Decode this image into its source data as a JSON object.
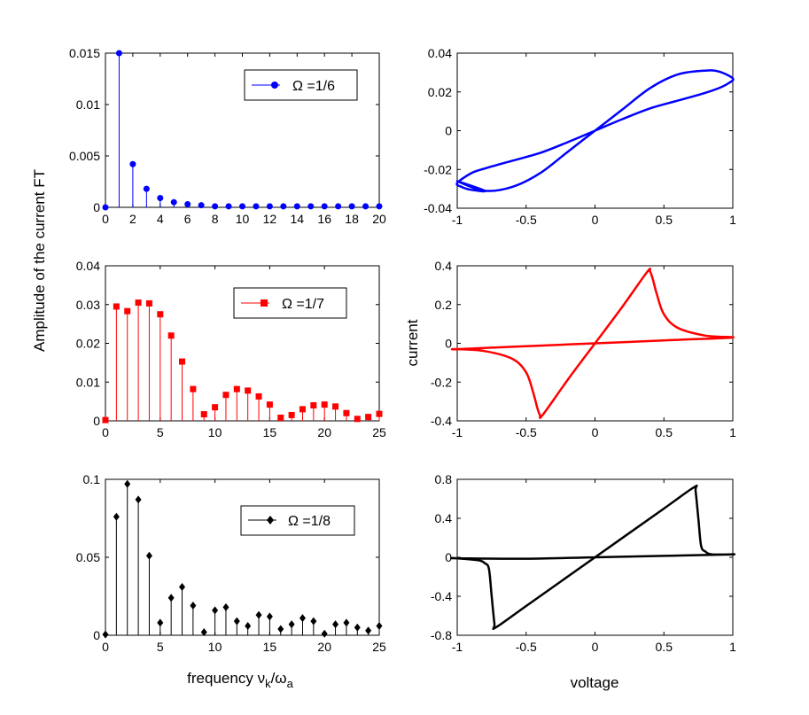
{
  "figure": {
    "ylabel": "Amplitude of the current FT",
    "xlabel_prefix": "frequency ",
    "xlabel_nu": "ν",
    "xlabel_nu_sub": "k",
    "xlabel_slash": "/",
    "xlabel_omega": "ω",
    "xlabel_omega_sub": "a",
    "right_ylabel": "current",
    "right_xlabel": "voltage"
  },
  "chart_data": [
    {
      "type": "stem",
      "legend": "Ω =1/6",
      "color": "#0000ff",
      "marker": "circle",
      "xlim": [
        0,
        20
      ],
      "ylim": [
        0,
        0.015
      ],
      "xticks": [
        0,
        2,
        4,
        6,
        8,
        10,
        12,
        14,
        16,
        18,
        20
      ],
      "yticks": [
        0,
        0.005,
        0.01,
        0.015
      ],
      "ytick_labels": [
        "0",
        "0.005",
        "0.01",
        "0.015"
      ],
      "x": [
        0,
        1,
        2,
        3,
        4,
        5,
        6,
        7,
        8,
        9,
        10,
        11,
        12,
        13,
        14,
        15,
        16,
        17,
        18,
        19,
        20
      ],
      "values": [
        0,
        0.015,
        0.0042,
        0.0018,
        0.0009,
        0.0005,
        0.0003,
        0.0002,
        0.0001,
        0.0001,
        0.0001,
        0.0001,
        0.0001,
        0.0001,
        0.0001,
        0.0001,
        0.0001,
        0.0001,
        0.0001,
        0.0001,
        0.0001
      ]
    },
    {
      "type": "stem",
      "legend": "Ω =1/7",
      "color": "#ff0000",
      "marker": "square",
      "xlim": [
        0,
        25
      ],
      "ylim": [
        0,
        0.04
      ],
      "xticks": [
        0,
        5,
        10,
        15,
        20,
        25
      ],
      "yticks": [
        0,
        0.01,
        0.02,
        0.03,
        0.04
      ],
      "ytick_labels": [
        "0",
        "0.01",
        "0.02",
        "0.03",
        "0.04"
      ],
      "x": [
        0,
        1,
        2,
        3,
        4,
        5,
        6,
        7,
        8,
        9,
        10,
        11,
        12,
        13,
        14,
        15,
        16,
        17,
        18,
        19,
        20,
        21,
        22,
        23,
        24,
        25
      ],
      "values": [
        0.0002,
        0.0295,
        0.0283,
        0.0305,
        0.0303,
        0.0275,
        0.022,
        0.0153,
        0.0082,
        0.0017,
        0.0035,
        0.0067,
        0.0082,
        0.0078,
        0.0063,
        0.0042,
        0.0008,
        0.0015,
        0.003,
        0.004,
        0.0042,
        0.0037,
        0.002,
        0.0005,
        0.001,
        0.0018
      ]
    },
    {
      "type": "stem",
      "legend": "Ω =1/8",
      "color": "#000000",
      "marker": "diamond",
      "xlim": [
        0,
        25
      ],
      "ylim": [
        0,
        0.1
      ],
      "xticks": [
        0,
        5,
        10,
        15,
        20,
        25
      ],
      "yticks": [
        0,
        0.05,
        0.1
      ],
      "ytick_labels": [
        "0",
        "0.05",
        "0.1"
      ],
      "x": [
        0,
        1,
        2,
        3,
        4,
        5,
        6,
        7,
        8,
        9,
        10,
        11,
        12,
        13,
        14,
        15,
        16,
        17,
        18,
        19,
        20,
        21,
        22,
        23,
        24,
        25
      ],
      "values": [
        0.0005,
        0.076,
        0.097,
        0.087,
        0.051,
        0.008,
        0.024,
        0.031,
        0.019,
        0.002,
        0.016,
        0.018,
        0.009,
        0.006,
        0.013,
        0.012,
        0.004,
        0.007,
        0.011,
        0.009,
        0.001,
        0.007,
        0.008,
        0.005,
        0.003,
        0.006
      ]
    },
    {
      "type": "hysteresis-loop",
      "color": "#0000ff",
      "xlim": [
        -1,
        1
      ],
      "ylim": [
        -0.04,
        0.04
      ],
      "xticks": [
        -1,
        -0.5,
        0,
        0.5,
        1
      ],
      "xtick_labels": [
        "-1",
        "-0.5",
        "0",
        "0.5",
        "1"
      ],
      "yticks": [
        -0.04,
        -0.02,
        0,
        0.02,
        0.04
      ],
      "ytick_labels": [
        "-0.04",
        "-0.02",
        "0",
        "0.02",
        "0.04"
      ],
      "x": [
        -1,
        -0.8,
        -0.6,
        -0.4,
        -0.2,
        0,
        0.2,
        0.4,
        0.6,
        0.8,
        0.9,
        1,
        0.97,
        0.9,
        0.8,
        0.6,
        0.4,
        0.2,
        0,
        -0.2,
        -0.4,
        -0.6,
        -0.8,
        -0.9,
        -1,
        -0.97,
        -0.9,
        -0.8
      ],
      "y": [
        -0.026,
        -0.031,
        -0.029,
        -0.022,
        -0.011,
        0,
        0.011,
        0.022,
        0.029,
        0.031,
        0.0305,
        0.027,
        0.0245,
        0.022,
        0.0195,
        0.0155,
        0.0115,
        0.006,
        0,
        -0.006,
        -0.0115,
        -0.0155,
        -0.0195,
        -0.022,
        -0.027,
        -0.029,
        -0.0305,
        -0.031
      ]
    },
    {
      "type": "hysteresis-loop",
      "color": "#ff0000",
      "ylabel": "current",
      "xlim": [
        -1,
        1
      ],
      "ylim": [
        -0.4,
        0.4
      ],
      "xticks": [
        -1,
        -0.5,
        0,
        0.5,
        1
      ],
      "xtick_labels": [
        "-1",
        "-0.5",
        "0",
        "0.5",
        "1"
      ],
      "yticks": [
        -0.4,
        -0.2,
        0,
        0.2,
        0.4
      ],
      "ytick_labels": [
        "-0.4",
        "-0.2",
        "0",
        "0.2",
        "0.4"
      ],
      "x": [
        -1,
        -0.8,
        -0.6,
        -0.5,
        -0.45,
        -0.42,
        -0.4,
        -0.38,
        -0.2,
        0,
        0.2,
        0.38,
        0.4,
        0.42,
        0.45,
        0.5,
        0.6,
        0.8,
        1,
        0.6,
        0.2,
        0,
        -0.2,
        -0.6,
        -1
      ],
      "y": [
        -0.03,
        -0.04,
        -0.08,
        -0.15,
        -0.25,
        -0.33,
        -0.37,
        -0.37,
        -0.19,
        0,
        0.19,
        0.37,
        0.37,
        0.33,
        0.25,
        0.15,
        0.08,
        0.04,
        0.03,
        0.018,
        0.006,
        0,
        -0.006,
        -0.018,
        -0.03
      ]
    },
    {
      "type": "hysteresis-loop",
      "color": "#000000",
      "xlabel": "voltage",
      "xlim": [
        -1,
        1
      ],
      "ylim": [
        -0.8,
        0.8
      ],
      "xticks": [
        -1,
        -0.5,
        0,
        0.5,
        1
      ],
      "xtick_labels": [
        "-1",
        "-0.5",
        "0",
        "0.5",
        "1"
      ],
      "yticks": [
        -0.8,
        -0.4,
        0,
        0.4,
        0.8
      ],
      "ytick_labels": [
        "-0.8",
        "-0.4",
        "0",
        "0.4",
        "0.8"
      ],
      "x": [
        -1,
        -0.85,
        -0.8,
        -0.77,
        -0.75,
        -0.73,
        -0.72,
        -0.5,
        0,
        0.5,
        0.72,
        0.73,
        0.75,
        0.77,
        0.8,
        0.85,
        1,
        0.5,
        0,
        -0.5,
        -1
      ],
      "y": [
        -0.01,
        -0.03,
        -0.06,
        -0.12,
        -0.4,
        -0.68,
        -0.72,
        -0.5,
        0,
        0.5,
        0.72,
        0.68,
        0.4,
        0.12,
        0.06,
        0.03,
        0.03,
        0.015,
        0,
        -0.015,
        -0.01
      ]
    }
  ]
}
